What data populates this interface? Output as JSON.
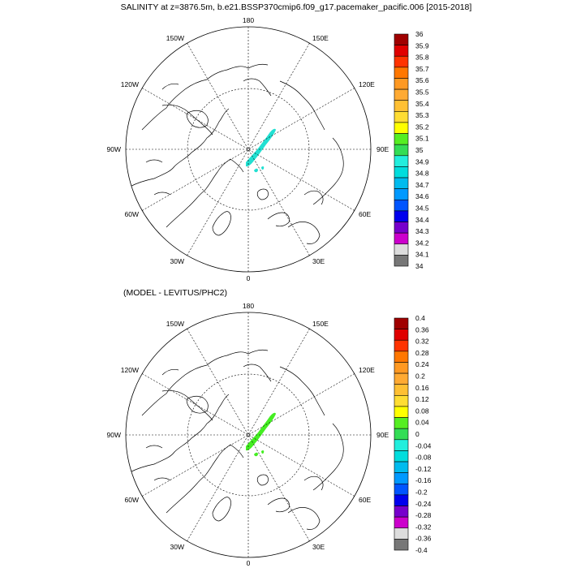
{
  "titles": {
    "top": "SALINITY at z=3876.5m, b.e21.BSSP370cmip6.f09_g17.pacemaker_pacific.006 [2015-2018]",
    "bottom": "(MODEL - LEVITUS/PHC2)"
  },
  "maps": [
    {
      "name": "salinity-map",
      "projection": "north-polar-stereographic",
      "lon_labels": {
        "lon_180": "180",
        "lon_150w": "150W",
        "lon_150e": "150E",
        "lon_120w": "120W",
        "lon_120e": "120E",
        "lon_90w": "90W",
        "lon_90e": "90E",
        "lon_60w": "60W",
        "lon_60e": "60E",
        "lon_30w": "30W",
        "lon_30e": "30E",
        "lon_0": "0"
      },
      "field_color": "#22e0d2",
      "field_description_value": 34.9
    },
    {
      "name": "difference-map",
      "projection": "north-polar-stereographic",
      "lon_labels": {
        "lon_180": "180",
        "lon_150w": "150W",
        "lon_150e": "150E",
        "lon_120w": "120W",
        "lon_120e": "120E",
        "lon_90w": "90W",
        "lon_90e": "90E",
        "lon_60w": "60W",
        "lon_60e": "60E",
        "lon_30w": "30W",
        "lon_30e": "30E",
        "lon_0": "0"
      },
      "field_color": "#44ee22",
      "field_description_value": 0.06
    }
  ],
  "colorbars": [
    {
      "name": "salinity-colorbar",
      "labels": [
        "36",
        "35.9",
        "35.8",
        "35.7",
        "35.6",
        "35.5",
        "35.4",
        "35.3",
        "35.2",
        "35.1",
        "35",
        "34.9",
        "34.8",
        "34.7",
        "34.6",
        "34.5",
        "34.4",
        "34.3",
        "34.2",
        "34.1",
        "34"
      ],
      "colors": [
        "#a00000",
        "#e00000",
        "#ff3300",
        "#ff7700",
        "#ff9922",
        "#ffaa33",
        "#ffc033",
        "#ffdd33",
        "#ffff00",
        "#55ee22",
        "#33dd55",
        "#22eedd",
        "#00dddd",
        "#00bbee",
        "#0099ff",
        "#0055ff",
        "#0000ee",
        "#7700cc",
        "#cc00cc",
        "#dddddd",
        "#777777"
      ]
    },
    {
      "name": "difference-colorbar",
      "labels": [
        "0.4",
        "0.36",
        "0.32",
        "0.28",
        "0.24",
        "0.2",
        "0.16",
        "0.12",
        "0.08",
        "0.04",
        "0",
        "-0.04",
        "-0.08",
        "-0.12",
        "-0.16",
        "-0.2",
        "-0.24",
        "-0.28",
        "-0.32",
        "-0.36",
        "-0.4"
      ],
      "colors": [
        "#a00000",
        "#e00000",
        "#ff3300",
        "#ff7700",
        "#ff9922",
        "#ffaa33",
        "#ffc033",
        "#ffdd33",
        "#ffff00",
        "#55ee22",
        "#33dd55",
        "#22eedd",
        "#00dddd",
        "#00bbee",
        "#0099ff",
        "#0055ff",
        "#0000ee",
        "#7700cc",
        "#cc00cc",
        "#dddddd",
        "#777777"
      ]
    }
  ]
}
